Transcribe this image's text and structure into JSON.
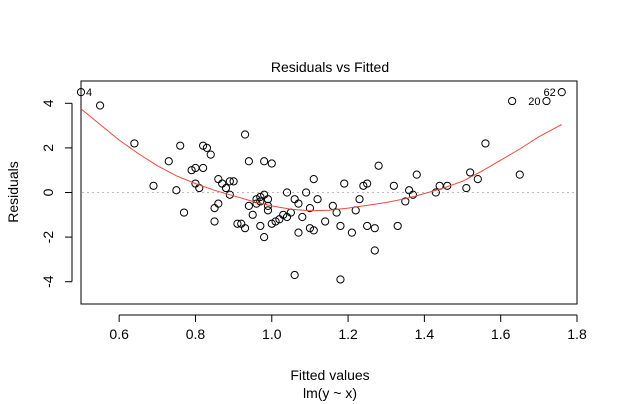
{
  "chart_data": {
    "type": "scatter",
    "title": "Residuals vs Fitted",
    "xlabel": "Fitted values",
    "sublabel": "lm(y ~ x)",
    "ylabel": "Residuals",
    "xlim": [
      0.5,
      1.8
    ],
    "ylim": [
      -5,
      5
    ],
    "xticks": [
      0.6,
      0.8,
      1.0,
      1.2,
      1.4,
      1.6,
      1.8
    ],
    "xtick_labels": [
      "0.6",
      "0.8",
      "1.0",
      "1.2",
      "1.4",
      "1.6",
      "1.8"
    ],
    "yticks": [
      -4,
      -2,
      0,
      2,
      4
    ],
    "ytick_labels": [
      "-4",
      "-2",
      "0",
      "2",
      "4"
    ],
    "reference_line": 0,
    "smoother_color": "#e64b3c",
    "points": [
      [
        0.5,
        4.5
      ],
      [
        0.55,
        3.9
      ],
      [
        0.64,
        2.2
      ],
      [
        0.69,
        0.3
      ],
      [
        0.73,
        1.4
      ],
      [
        0.75,
        0.1
      ],
      [
        0.76,
        2.1
      ],
      [
        0.77,
        -0.9
      ],
      [
        0.79,
        1.0
      ],
      [
        0.8,
        1.1
      ],
      [
        0.8,
        0.4
      ],
      [
        0.81,
        0.2
      ],
      [
        0.82,
        1.1
      ],
      [
        0.82,
        2.1
      ],
      [
        0.83,
        2.0
      ],
      [
        0.84,
        1.7
      ],
      [
        0.85,
        -1.3
      ],
      [
        0.85,
        -0.7
      ],
      [
        0.86,
        -0.5
      ],
      [
        0.86,
        0.6
      ],
      [
        0.87,
        0.4
      ],
      [
        0.88,
        0.2
      ],
      [
        0.89,
        -0.1
      ],
      [
        0.89,
        0.5
      ],
      [
        0.9,
        0.5
      ],
      [
        0.91,
        -1.4
      ],
      [
        0.92,
        -1.4
      ],
      [
        0.93,
        2.6
      ],
      [
        0.93,
        -1.6
      ],
      [
        0.94,
        1.4
      ],
      [
        0.94,
        -0.6
      ],
      [
        0.95,
        -1.0
      ],
      [
        0.96,
        -0.5
      ],
      [
        0.96,
        -0.3
      ],
      [
        0.97,
        -0.4
      ],
      [
        0.97,
        -1.5
      ],
      [
        0.97,
        -0.2
      ],
      [
        0.98,
        -2.0
      ],
      [
        0.98,
        -0.1
      ],
      [
        0.98,
        1.4
      ],
      [
        0.99,
        -0.3
      ],
      [
        0.99,
        -0.6
      ],
      [
        0.99,
        -0.8
      ],
      [
        1.0,
        -1.4
      ],
      [
        1.0,
        1.3
      ],
      [
        1.01,
        -1.3
      ],
      [
        1.02,
        -1.2
      ],
      [
        1.03,
        -1.0
      ],
      [
        1.04,
        -1.1
      ],
      [
        1.04,
        0.0
      ],
      [
        1.05,
        -0.9
      ],
      [
        1.06,
        -0.3
      ],
      [
        1.06,
        -3.7
      ],
      [
        1.07,
        -1.8
      ],
      [
        1.07,
        -0.5
      ],
      [
        1.08,
        -1.1
      ],
      [
        1.09,
        0.0
      ],
      [
        1.1,
        -0.7
      ],
      [
        1.1,
        -1.6
      ],
      [
        1.11,
        -1.7
      ],
      [
        1.11,
        0.6
      ],
      [
        1.12,
        -0.3
      ],
      [
        1.14,
        -1.3
      ],
      [
        1.16,
        -0.6
      ],
      [
        1.17,
        -0.9
      ],
      [
        1.18,
        -1.5
      ],
      [
        1.18,
        -3.9
      ],
      [
        1.19,
        0.4
      ],
      [
        1.21,
        -1.8
      ],
      [
        1.22,
        -0.8
      ],
      [
        1.23,
        -0.3
      ],
      [
        1.24,
        0.3
      ],
      [
        1.25,
        -1.5
      ],
      [
        1.25,
        0.4
      ],
      [
        1.27,
        -1.6
      ],
      [
        1.27,
        -2.6
      ],
      [
        1.28,
        1.2
      ],
      [
        1.32,
        0.3
      ],
      [
        1.33,
        -1.5
      ],
      [
        1.35,
        -0.4
      ],
      [
        1.36,
        0.1
      ],
      [
        1.37,
        -0.1
      ],
      [
        1.38,
        0.8
      ],
      [
        1.43,
        0.0
      ],
      [
        1.44,
        0.3
      ],
      [
        1.46,
        0.3
      ],
      [
        1.51,
        0.2
      ],
      [
        1.52,
        0.9
      ],
      [
        1.54,
        0.6
      ],
      [
        1.56,
        2.2
      ],
      [
        1.63,
        4.1
      ],
      [
        1.65,
        0.8
      ],
      [
        1.72,
        4.1
      ],
      [
        1.76,
        4.5
      ]
    ],
    "point_labels": [
      {
        "text": "4",
        "x": 0.5,
        "y": 4.5,
        "side": "right"
      },
      {
        "text": "20",
        "x": 1.72,
        "y": 4.1,
        "side": "left"
      },
      {
        "text": "62",
        "x": 1.76,
        "y": 4.5,
        "side": "left"
      }
    ],
    "smoother": [
      [
        0.5,
        3.75
      ],
      [
        0.55,
        3.05
      ],
      [
        0.6,
        2.35
      ],
      [
        0.65,
        1.75
      ],
      [
        0.7,
        1.2
      ],
      [
        0.75,
        0.75
      ],
      [
        0.8,
        0.4
      ],
      [
        0.85,
        0.1
      ],
      [
        0.9,
        -0.15
      ],
      [
        0.95,
        -0.4
      ],
      [
        1.0,
        -0.6
      ],
      [
        1.05,
        -0.75
      ],
      [
        1.1,
        -0.82
      ],
      [
        1.15,
        -0.8
      ],
      [
        1.2,
        -0.7
      ],
      [
        1.25,
        -0.58
      ],
      [
        1.3,
        -0.45
      ],
      [
        1.35,
        -0.28
      ],
      [
        1.4,
        -0.05
      ],
      [
        1.45,
        0.2
      ],
      [
        1.5,
        0.5
      ],
      [
        1.55,
        0.95
      ],
      [
        1.6,
        1.45
      ],
      [
        1.65,
        1.95
      ],
      [
        1.7,
        2.5
      ],
      [
        1.76,
        3.05
      ]
    ]
  }
}
